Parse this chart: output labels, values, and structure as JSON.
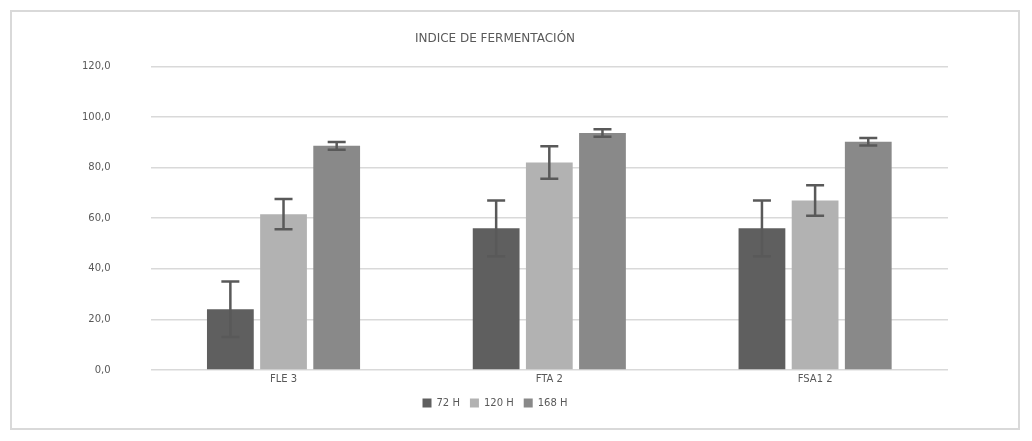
{
  "chart_data": {
    "type": "bar",
    "title": "INDICE DE FERMENTACIÓN",
    "categories": [
      "FLE 3",
      "FTA 2",
      "FSA1 2"
    ],
    "series": [
      {
        "name": "72 H",
        "color": "#5f5f5f",
        "values": [
          24,
          56,
          56
        ],
        "errors": [
          11,
          11,
          11
        ]
      },
      {
        "name": "120 H",
        "color": "#b2b2b2",
        "values": [
          61.6,
          82,
          67
        ],
        "errors": [
          6,
          6.4,
          6
        ]
      },
      {
        "name": "168 H",
        "color": "#898989",
        "values": [
          88.6,
          93.7,
          90.2
        ],
        "errors": [
          1.5,
          1.5,
          1.5
        ]
      }
    ],
    "ylim": [
      0,
      120
    ],
    "yticks": [
      {
        "value": 0,
        "label": "0,0"
      },
      {
        "value": 20,
        "label": "20,0"
      },
      {
        "value": 40,
        "label": "40,0"
      },
      {
        "value": 60,
        "label": "60,0"
      },
      {
        "value": 80,
        "label": "80,0"
      },
      {
        "value": 100,
        "label": "100,0"
      },
      {
        "value": 120,
        "label": "120,0"
      }
    ],
    "grid": "y",
    "legend": "bottom"
  }
}
